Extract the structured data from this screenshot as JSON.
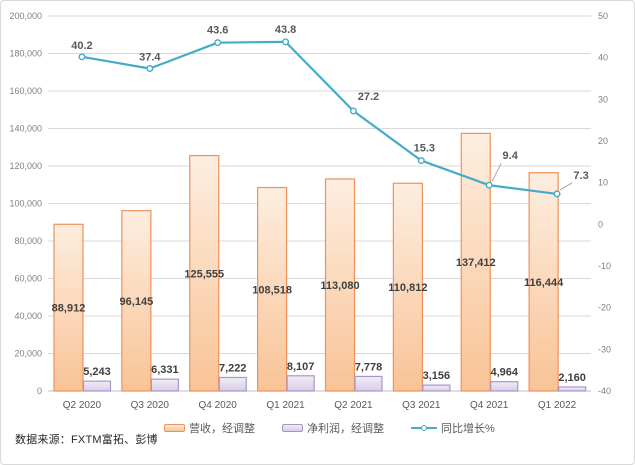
{
  "source_note": "数据来源：FXTM富拓、彭博",
  "colors": {
    "revenue_border": "#F0915A",
    "revenue_fill_top": "#FDEEE0",
    "revenue_fill_bottom": "#F9C396",
    "profit_border": "#A996C8",
    "profit_fill_top": "#F0ECF6",
    "profit_fill_bottom": "#D9CEE8",
    "growth_line": "#45ABC7",
    "gridline": "#D9D9D9",
    "axis_line": "#BFBFBF",
    "axis_tick_text": "#808080",
    "category_text": "#595959",
    "bar_label_text": "#404040",
    "line_label_text": "#595959",
    "leader_line": "#A6A6A6",
    "source_text": "#262626"
  },
  "chart_data": {
    "type": "combo-bar-line",
    "title": "",
    "xlabel": "",
    "ylabel_left": "",
    "ylabel_right": "",
    "grid": true,
    "legend_position": "bottom",
    "categories": [
      "Q2 2020",
      "Q3 2020",
      "Q4 2020",
      "Q1 2021",
      "Q2 2021",
      "Q3 2021",
      "Q4 2021",
      "Q1 2022"
    ],
    "series": [
      {
        "name": "营收，经调整",
        "type": "bar",
        "axis": "left",
        "values": [
          88912,
          96145,
          125555,
          108518,
          113080,
          110812,
          137412,
          116444
        ],
        "labels": [
          "88,912",
          "96,145",
          "125,555",
          "108,518",
          "113,080",
          "110,812",
          "137,412",
          "116,444"
        ]
      },
      {
        "name": "净利润，经调整",
        "type": "bar",
        "axis": "left",
        "values": [
          5243,
          6331,
          7222,
          8107,
          7778,
          3156,
          4964,
          2160
        ],
        "labels": [
          "5,243",
          "6,331",
          "7,222",
          "8,107",
          "7,778",
          "3,156",
          "4,964",
          "2,160"
        ]
      },
      {
        "name": "同比增长%",
        "type": "line",
        "axis": "right",
        "values": [
          40.2,
          37.4,
          43.6,
          43.8,
          27.2,
          15.3,
          9.4,
          7.3
        ],
        "labels": [
          "40.2",
          "37.4",
          "43.6",
          "43.8",
          "27.2",
          "15.3",
          "9.4",
          "7.3"
        ]
      }
    ],
    "left_axis": {
      "min": 0,
      "max": 200000,
      "step": 20000,
      "tick_labels": [
        "0",
        "20,000",
        "40,000",
        "60,000",
        "80,000",
        "100,000",
        "120,000",
        "140,000",
        "160,000",
        "180,000",
        "200,000"
      ]
    },
    "right_axis": {
      "min": -40,
      "max": 50,
      "step": 10,
      "tick_labels": [
        "-40",
        "-30",
        "-20",
        "-10",
        "0",
        "10",
        "20",
        "30",
        "40",
        "50"
      ]
    }
  }
}
